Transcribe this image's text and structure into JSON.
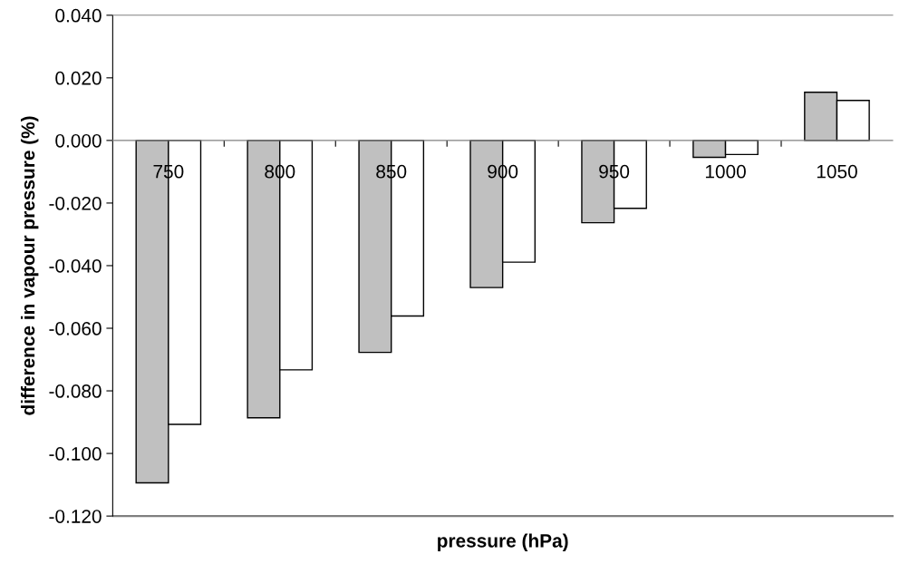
{
  "chart_data": {
    "type": "bar",
    "xlabel": "pressure (hPa)",
    "ylabel": "difference in vapour pressure (%)",
    "categories": [
      "750",
      "800",
      "850",
      "900",
      "950",
      "1000",
      "1050"
    ],
    "series": [
      {
        "color": "#c0c0c0",
        "values": [
          -0.1094,
          -0.0886,
          -0.0677,
          -0.047,
          -0.0263,
          -0.0054,
          0.0154
        ]
      },
      {
        "color": "#ffffff",
        "values": [
          -0.0907,
          -0.0733,
          -0.0561,
          -0.0389,
          -0.0217,
          -0.0045,
          0.0128
        ]
      }
    ],
    "ylim": [
      -0.12,
      0.04
    ],
    "yticks": [
      {
        "value": -0.12,
        "label": "-0.120"
      },
      {
        "value": -0.1,
        "label": "-0.100"
      },
      {
        "value": -0.08,
        "label": "-0.080"
      },
      {
        "value": -0.06,
        "label": "-0.060"
      },
      {
        "value": -0.04,
        "label": "-0.040"
      },
      {
        "value": -0.02,
        "label": "-0.020"
      },
      {
        "value": 0,
        "label": "0.000"
      },
      {
        "value": 0.02,
        "label": "0.020"
      },
      {
        "value": 0.04,
        "label": "0.040"
      }
    ],
    "grid": false,
    "legend": false
  }
}
